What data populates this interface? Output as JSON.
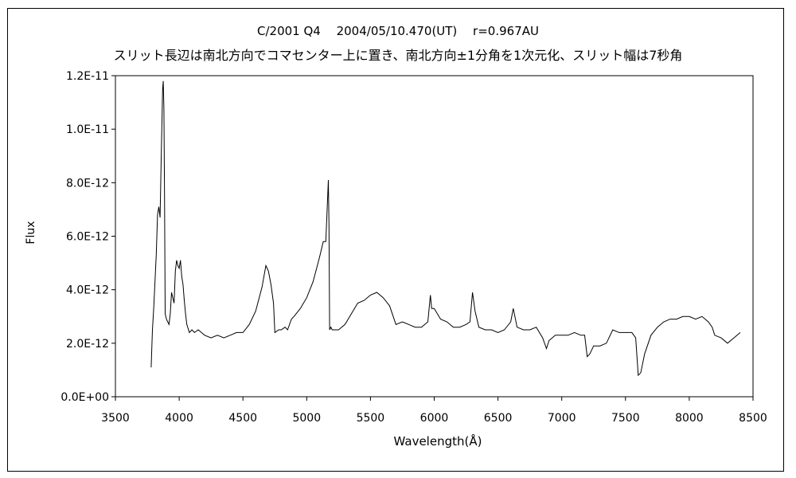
{
  "chart_data": {
    "type": "line",
    "title": "C/2001 Q4　 2004/05/10.470(UT)　 r=0.967AU",
    "subtitle": "スリット長辺は南北方向でコマセンター上に置き、南北方向±1分角を1次元化、スリット幅は7秒角",
    "xlabel": "Wavelength(Å)",
    "ylabel": "Flux",
    "xlim": [
      3500,
      8500
    ],
    "ylim": [
      0,
      1.2e-11
    ],
    "x_ticks": [
      3500,
      4000,
      4500,
      5000,
      5500,
      6000,
      6500,
      7000,
      7500,
      8000,
      8500
    ],
    "y_tick_values": [
      0,
      2e-12,
      4e-12,
      6e-12,
      8e-12,
      1e-11,
      1.2e-11
    ],
    "y_tick_labels": [
      "0.0E+00",
      "2.0E-12",
      "4.0E-12",
      "6.0E-12",
      "8.0E-12",
      "1.0E-11",
      "1.2E-11"
    ],
    "grid": false,
    "legend": "none",
    "line_color": "#000000",
    "series": [
      {
        "x": [
          3780,
          3790,
          3800,
          3810,
          3820,
          3830,
          3840,
          3850,
          3860,
          3870,
          3875,
          3880,
          3885,
          3890,
          3900,
          3910,
          3920,
          3930,
          3940,
          3950,
          3960,
          3970,
          3980,
          3990,
          4000,
          4010,
          4020,
          4030,
          4040,
          4050,
          4060,
          4080,
          4100,
          4120,
          4150,
          4200,
          4250,
          4300,
          4350,
          4400,
          4450,
          4500,
          4550,
          4600,
          4650,
          4680,
          4700,
          4720,
          4740,
          4750,
          4780,
          4800,
          4830,
          4850,
          4880,
          4900,
          4950,
          5000,
          5050,
          5100,
          5130,
          5150,
          5170,
          5175,
          5180,
          5190,
          5200,
          5250,
          5300,
          5350,
          5400,
          5450,
          5500,
          5550,
          5600,
          5650,
          5700,
          5750,
          5800,
          5850,
          5900,
          5950,
          5970,
          5980,
          6000,
          6050,
          6100,
          6150,
          6200,
          6250,
          6280,
          6300,
          6320,
          6350,
          6400,
          6450,
          6500,
          6550,
          6600,
          6620,
          6650,
          6700,
          6750,
          6800,
          6850,
          6880,
          6900,
          6950,
          7000,
          7050,
          7100,
          7150,
          7180,
          7200,
          7220,
          7250,
          7300,
          7350,
          7400,
          7450,
          7500,
          7550,
          7580,
          7600,
          7620,
          7650,
          7700,
          7750,
          7800,
          7850,
          7900,
          7950,
          8000,
          8050,
          8100,
          8150,
          8180,
          8200,
          8250,
          8300,
          8350,
          8400
        ],
        "y": [
          1.1e-12,
          2.5e-12,
          3.3e-12,
          4.3e-12,
          5.3e-12,
          6.8e-12,
          7.1e-12,
          6.7e-12,
          9.2e-12,
          1.15e-11,
          1.18e-11,
          1.08e-11,
          7.5e-12,
          3.1e-12,
          2.9e-12,
          2.8e-12,
          2.7e-12,
          3.1e-12,
          3.9e-12,
          3.7e-12,
          3.5e-12,
          4.7e-12,
          5.1e-12,
          4.9e-12,
          4.8e-12,
          5.1e-12,
          4.5e-12,
          4.2e-12,
          3.6e-12,
          3.1e-12,
          2.7e-12,
          2.4e-12,
          2.5e-12,
          2.4e-12,
          2.5e-12,
          2.3e-12,
          2.2e-12,
          2.3e-12,
          2.2e-12,
          2.3e-12,
          2.4e-12,
          2.4e-12,
          2.7e-12,
          3.2e-12,
          4.1e-12,
          4.9e-12,
          4.7e-12,
          4.2e-12,
          3.5e-12,
          2.4e-12,
          2.5e-12,
          2.5e-12,
          2.6e-12,
          2.5e-12,
          2.9e-12,
          3e-12,
          3.3e-12,
          3.7e-12,
          4.3e-12,
          5.2e-12,
          5.8e-12,
          5.8e-12,
          8.1e-12,
          6.4e-12,
          2.5e-12,
          2.6e-12,
          2.5e-12,
          2.5e-12,
          2.7e-12,
          3.1e-12,
          3.5e-12,
          3.6e-12,
          3.8e-12,
          3.9e-12,
          3.7e-12,
          3.4e-12,
          2.7e-12,
          2.8e-12,
          2.7e-12,
          2.6e-12,
          2.6e-12,
          2.8e-12,
          3.8e-12,
          3.3e-12,
          3.3e-12,
          2.9e-12,
          2.8e-12,
          2.6e-12,
          2.6e-12,
          2.7e-12,
          2.8e-12,
          3.9e-12,
          3.2e-12,
          2.6e-12,
          2.5e-12,
          2.5e-12,
          2.4e-12,
          2.5e-12,
          2.8e-12,
          3.3e-12,
          2.6e-12,
          2.5e-12,
          2.5e-12,
          2.6e-12,
          2.2e-12,
          1.8e-12,
          2.1e-12,
          2.3e-12,
          2.3e-12,
          2.3e-12,
          2.4e-12,
          2.3e-12,
          2.3e-12,
          1.5e-12,
          1.6e-12,
          1.9e-12,
          1.9e-12,
          2e-12,
          2.5e-12,
          2.4e-12,
          2.4e-12,
          2.4e-12,
          2.2e-12,
          8e-13,
          9e-13,
          1.6e-12,
          2.3e-12,
          2.6e-12,
          2.8e-12,
          2.9e-12,
          2.9e-12,
          3e-12,
          3e-12,
          2.9e-12,
          3e-12,
          2.8e-12,
          2.6e-12,
          2.3e-12,
          2.2e-12,
          2e-12,
          2.2e-12,
          2.4e-12
        ]
      }
    ]
  }
}
